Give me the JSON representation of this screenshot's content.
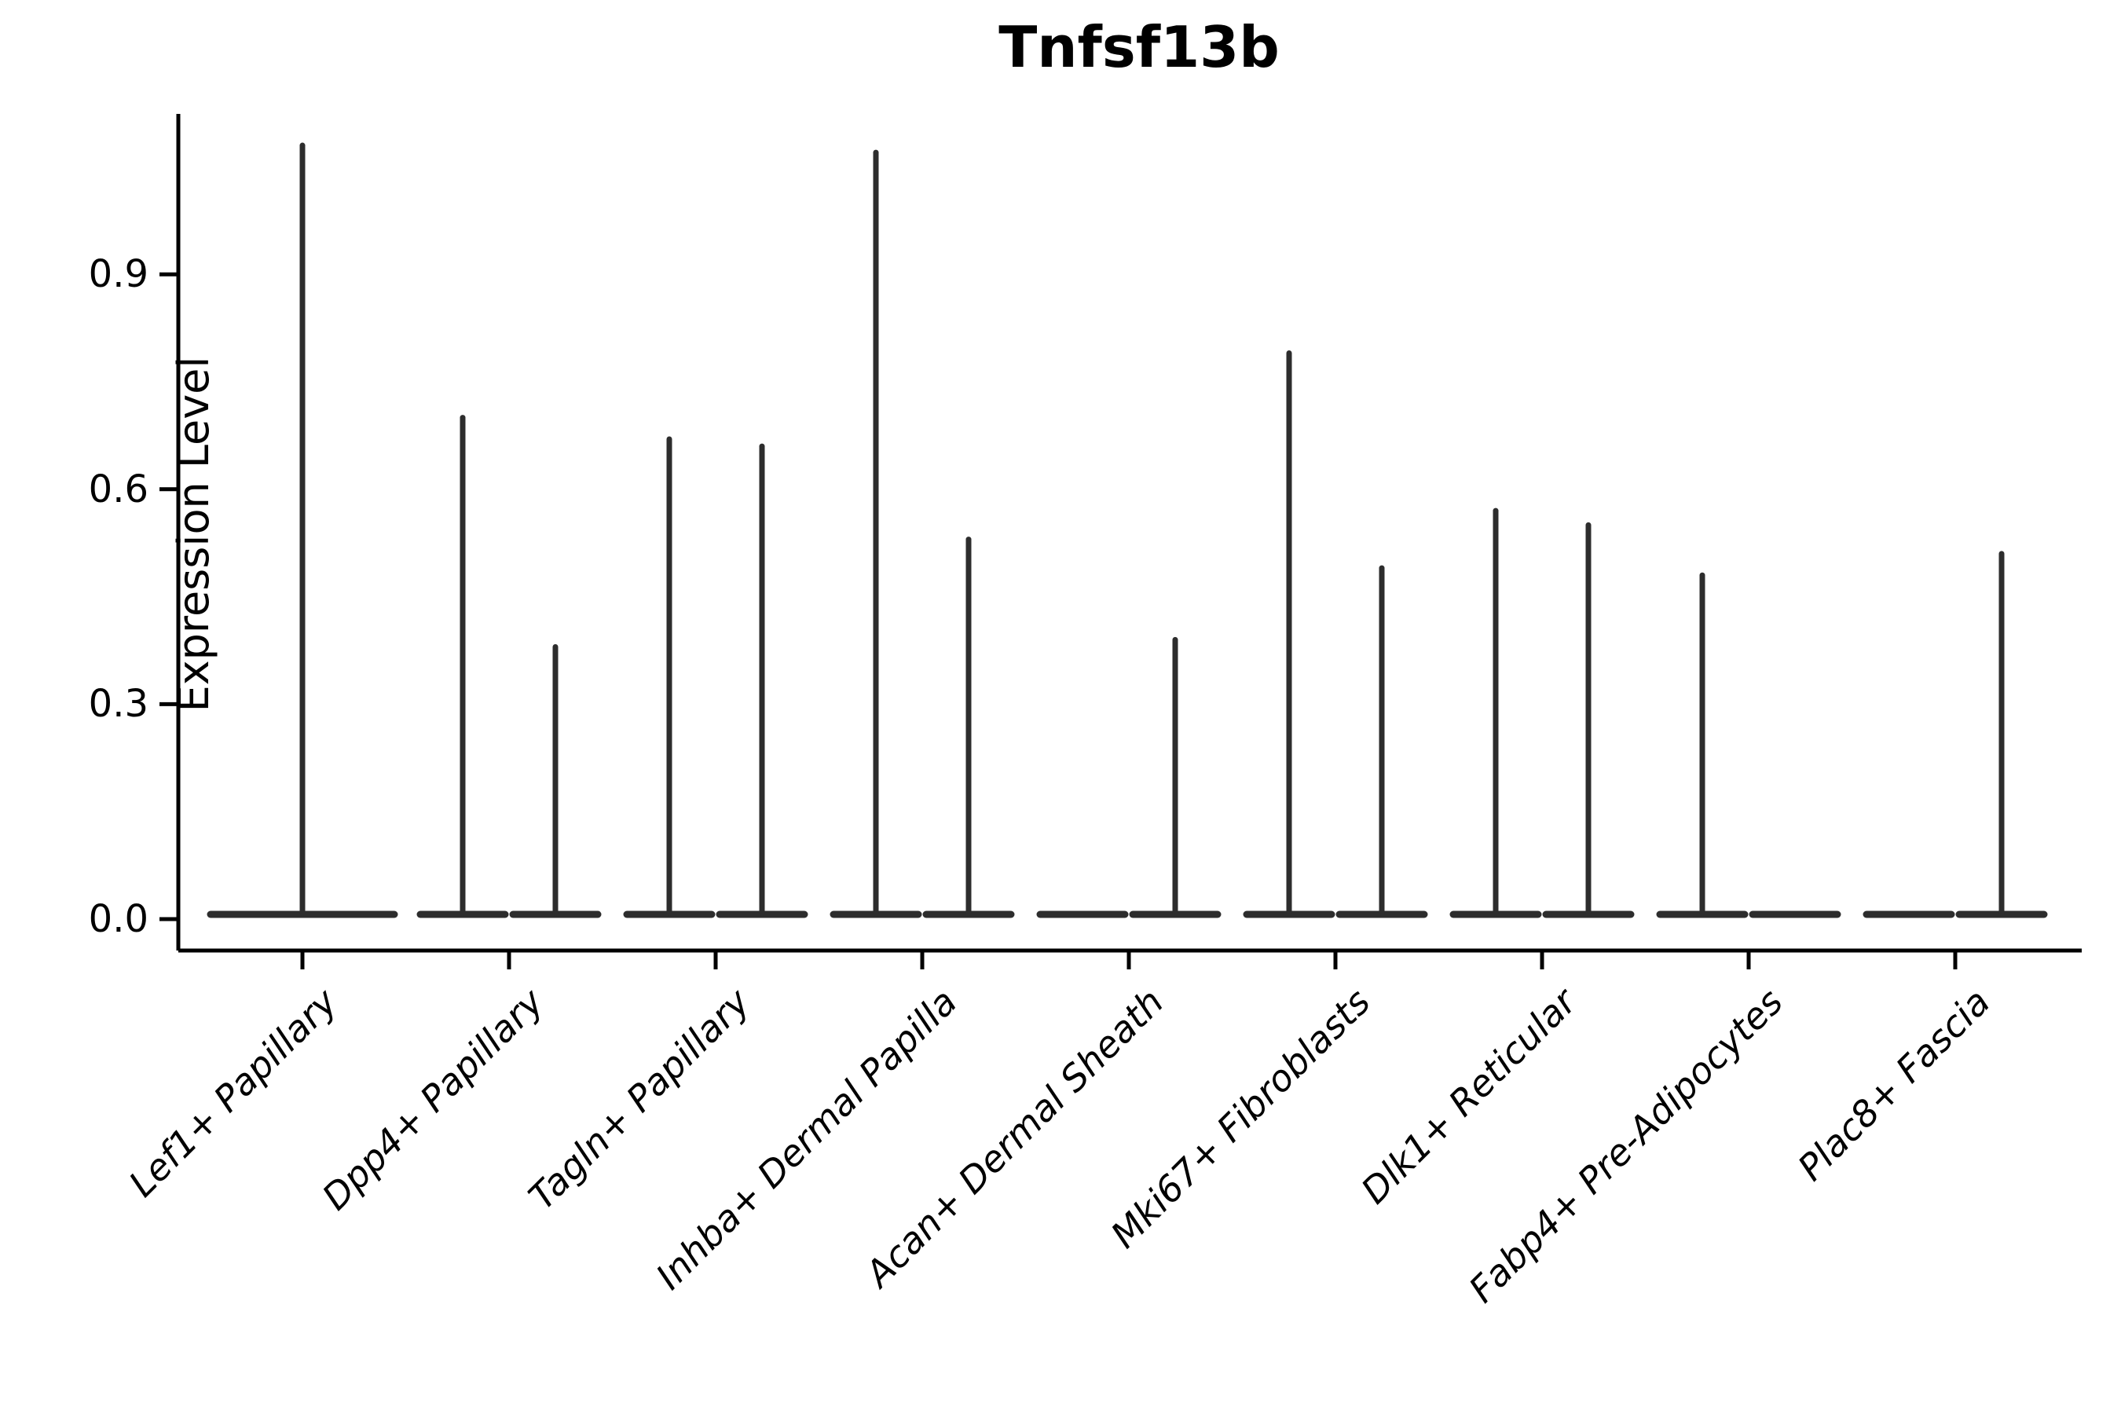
{
  "chart_data": {
    "type": "violin",
    "title": "Tnfsf13b",
    "ylabel": "Expression Level",
    "xlabel": "",
    "ytick_labels": [
      "0.0",
      "0.3",
      "0.6",
      "0.9"
    ],
    "ytick_values": [
      0.0,
      0.3,
      0.6,
      0.9
    ],
    "ylim": [
      -0.05,
      1.15
    ],
    "grid": false,
    "legend_position": "none",
    "categories": [
      "Lef1+ Papillary",
      "Dpp4+ Papillary",
      "Tagln+ Papillary",
      "Inhba+ Dermal Papilla",
      "Acan+ Dermal Sheath",
      "Mki67+ Fibroblasts",
      "Dlk1+ Reticular",
      "Fabp4+ Pre-Adipocytes",
      "Plac8+ Fascia"
    ],
    "violins": [
      {
        "category": "Lef1+ Papillary",
        "distributions": [
          {
            "slot": "full",
            "max_expression": 1.08
          }
        ]
      },
      {
        "category": "Dpp4+ Papillary",
        "distributions": [
          {
            "slot": "left",
            "max_expression": 0.7
          },
          {
            "slot": "right",
            "max_expression": 0.38
          }
        ]
      },
      {
        "category": "Tagln+ Papillary",
        "distributions": [
          {
            "slot": "left",
            "max_expression": 0.67
          },
          {
            "slot": "right",
            "max_expression": 0.66
          }
        ]
      },
      {
        "category": "Inhba+ Dermal Papilla",
        "distributions": [
          {
            "slot": "left",
            "max_expression": 1.07
          },
          {
            "slot": "right",
            "max_expression": 0.53
          }
        ]
      },
      {
        "category": "Acan+ Dermal Sheath",
        "distributions": [
          {
            "slot": "left",
            "max_expression": 0.0
          },
          {
            "slot": "right",
            "max_expression": 0.39
          }
        ]
      },
      {
        "category": "Mki67+ Fibroblasts",
        "distributions": [
          {
            "slot": "left",
            "max_expression": 0.79
          },
          {
            "slot": "right",
            "max_expression": 0.49
          }
        ]
      },
      {
        "category": "Dlk1+ Reticular",
        "distributions": [
          {
            "slot": "left",
            "max_expression": 0.57
          },
          {
            "slot": "right",
            "max_expression": 0.55
          }
        ]
      },
      {
        "category": "Fabp4+ Pre-Adipocytes",
        "distributions": [
          {
            "slot": "left",
            "max_expression": 0.48
          },
          {
            "slot": "right",
            "max_expression": 0.0
          }
        ]
      },
      {
        "category": "Plac8+ Fascia",
        "distributions": [
          {
            "slot": "left",
            "max_expression": 0.0
          },
          {
            "slot": "right",
            "max_expression": 0.51
          }
        ]
      }
    ],
    "colors": {
      "violin_stroke": "#2d2d2d",
      "axis": "#000000",
      "text": "#000000",
      "background": "#ffffff"
    }
  }
}
